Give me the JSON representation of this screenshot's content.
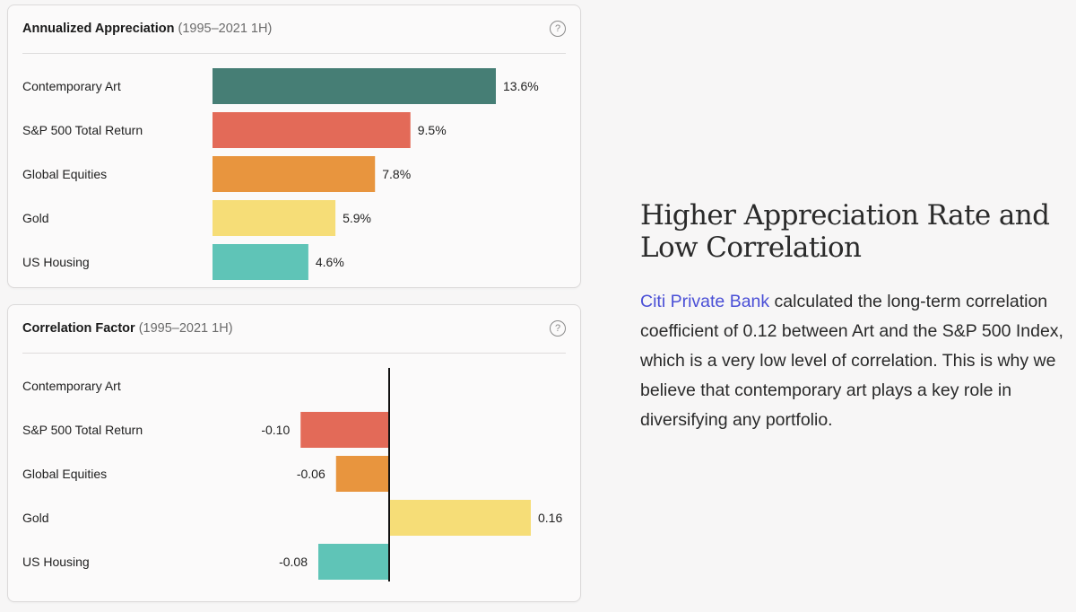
{
  "colors": {
    "teal": "#467e75",
    "coral": "#e36a58",
    "orange": "#e8953e",
    "yellow": "#f6dd77",
    "aqua": "#5fc4b7",
    "zero_line": "#111111"
  },
  "icons": {
    "help": "question-circle-icon"
  },
  "help_symbol": "?",
  "chart_data": [
    {
      "type": "bar",
      "orientation": "horizontal",
      "title": "Annualized Appreciation",
      "subtitle": "(1995–2021 1H)",
      "categories": [
        "Contemporary Art",
        "S&P 500 Total Return",
        "Global Equities",
        "Gold",
        "US Housing"
      ],
      "values": [
        13.6,
        9.5,
        7.8,
        5.9,
        4.6
      ],
      "labels": [
        "13.6%",
        "9.5%",
        "7.8%",
        "5.9%",
        "4.6%"
      ],
      "colors": [
        "#467e75",
        "#e36a58",
        "#e8953e",
        "#f6dd77",
        "#5fc4b7"
      ],
      "xlim": [
        0,
        13.6
      ]
    },
    {
      "type": "bar",
      "orientation": "horizontal",
      "title": "Correlation Factor",
      "subtitle": "(1995–2021 1H)",
      "categories": [
        "Contemporary Art",
        "S&P 500 Total Return",
        "Global Equities",
        "Gold",
        "US Housing"
      ],
      "values": [
        null,
        -0.1,
        -0.06,
        0.16,
        -0.08
      ],
      "labels": [
        "",
        "-0.10",
        "-0.06",
        "0.16",
        "-0.08"
      ],
      "colors": [
        "#467e75",
        "#e36a58",
        "#e8953e",
        "#f6dd77",
        "#5fc4b7"
      ],
      "xlim": [
        -0.22,
        0.26
      ]
    }
  ],
  "panel": {
    "heading": "Higher Appreciation Rate and Low Correlation",
    "link_text": "Citi Private Bank",
    "body": " calculated the long-term correlation coefficient of 0.12 between Art and the S&P 500 Index, which is a very low level of correlation. This is why we believe that contemporary art plays a key role in diversifying any portfolio."
  }
}
